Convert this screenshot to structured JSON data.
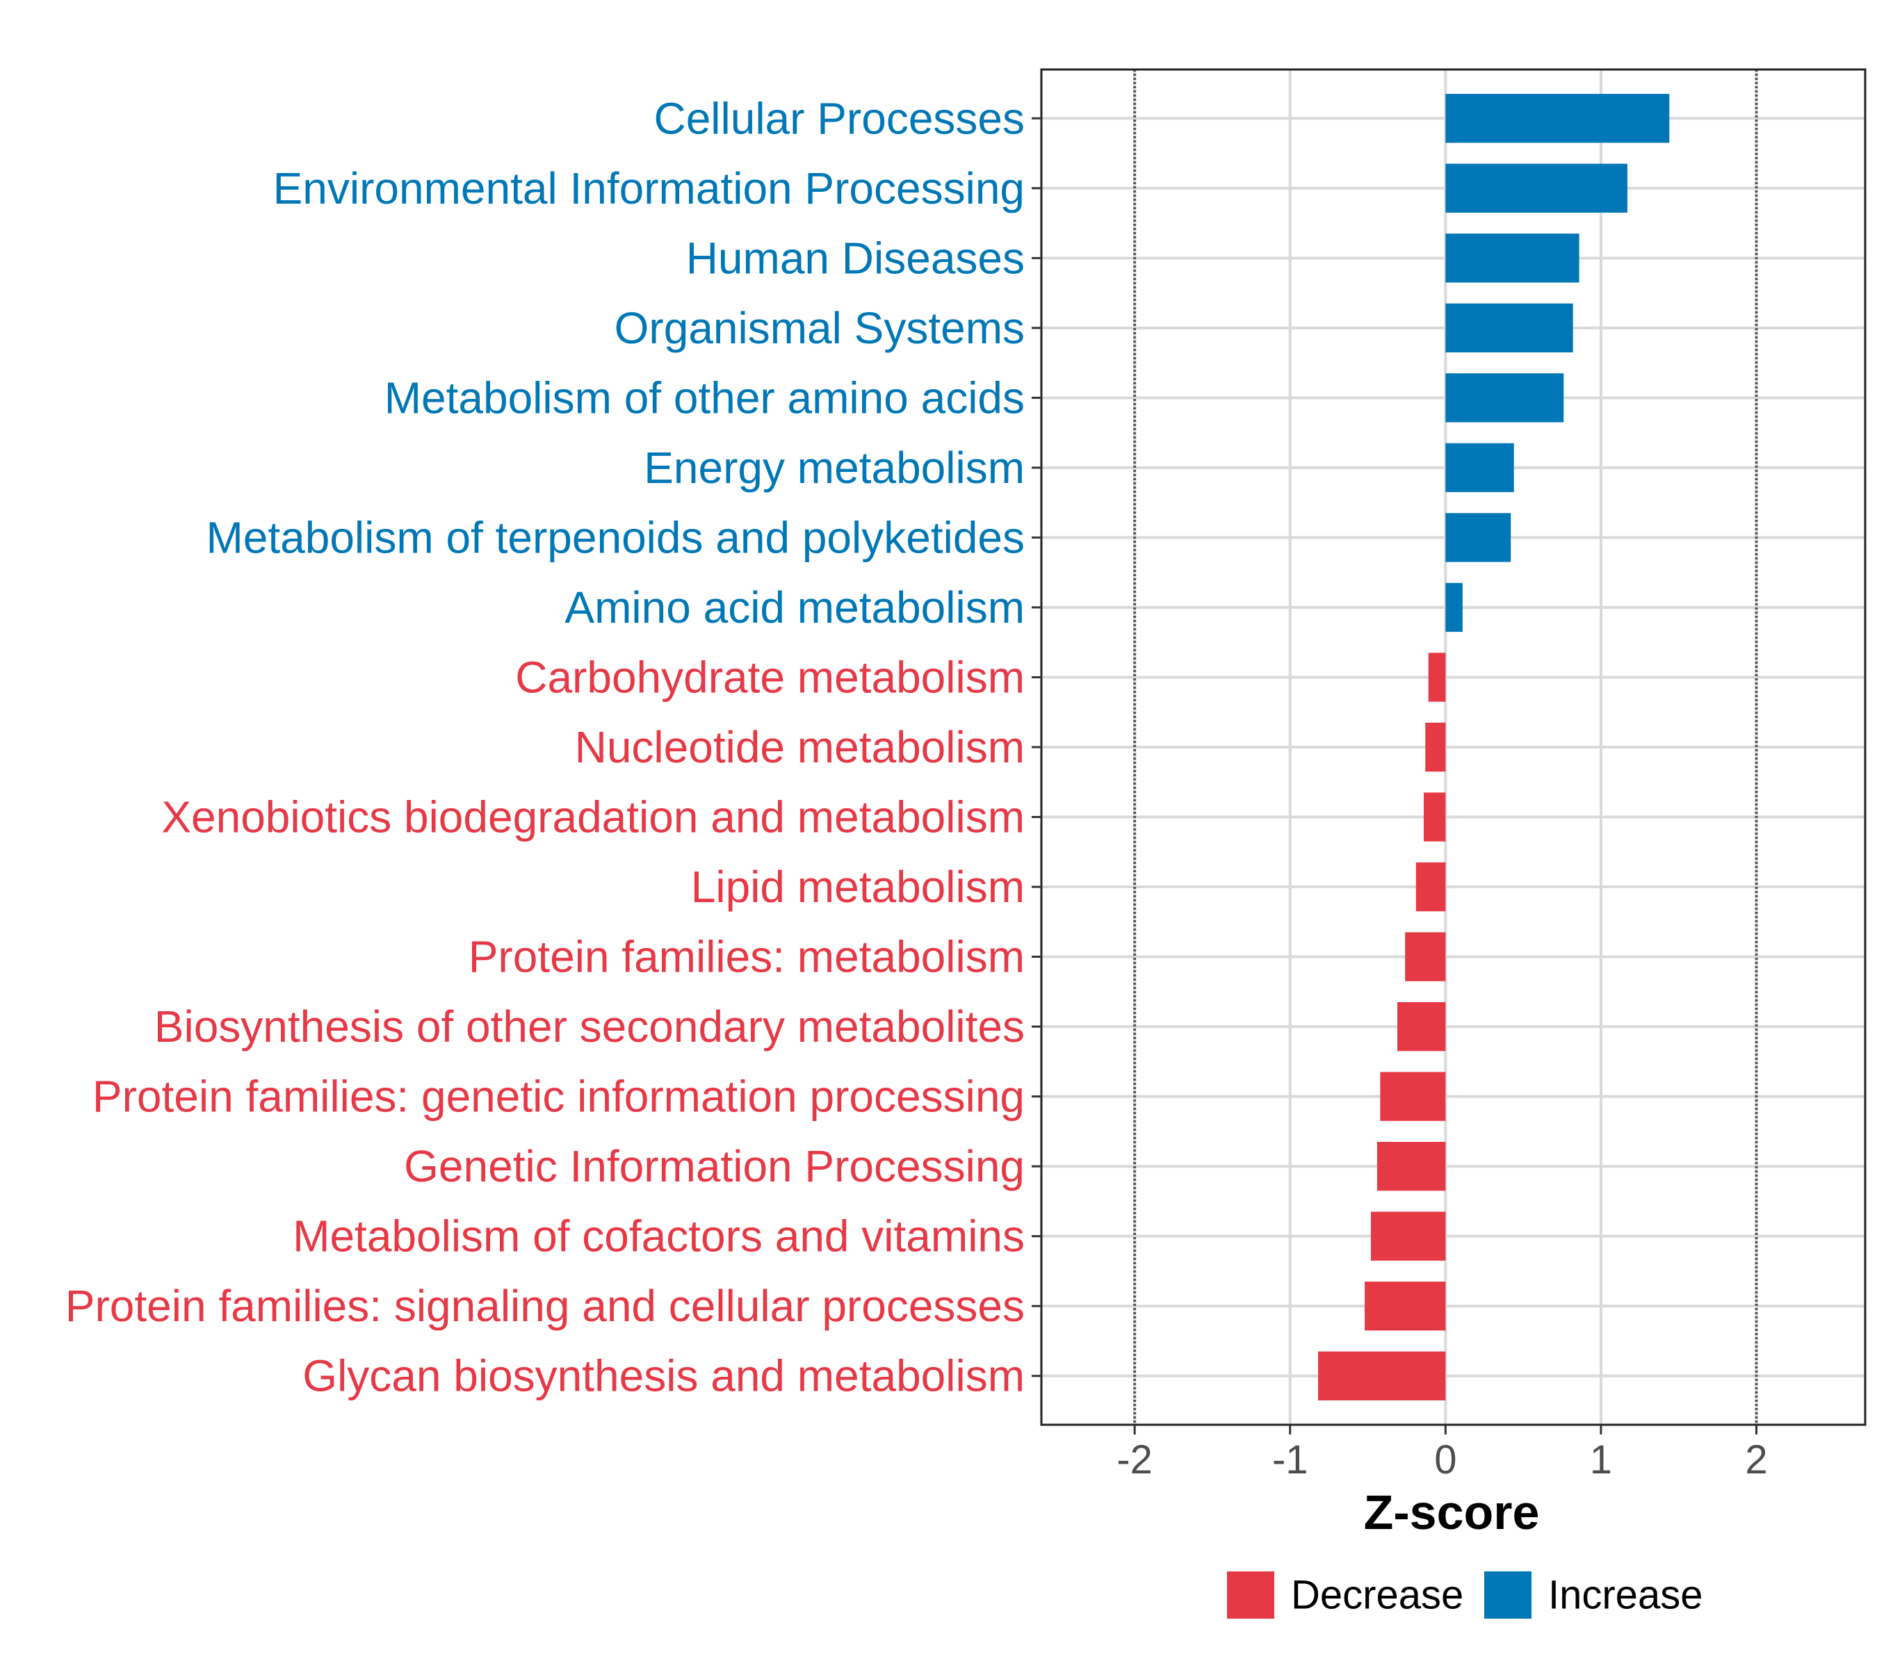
{
  "chart_data": {
    "type": "bar",
    "orientation": "horizontal",
    "title": "",
    "xlabel": "Z-score",
    "ylabel": "",
    "xlim": [
      -2.6,
      2.7
    ],
    "xticks": [
      -2,
      -1,
      0,
      1,
      2
    ],
    "xtick_labels": [
      "-2",
      "-1",
      "0",
      "1",
      "2"
    ],
    "reference_lines": [
      -2,
      2
    ],
    "grid": true,
    "colors": {
      "Increase": "#0077b6",
      "Decrease": "#e63946"
    },
    "categories": [
      "Cellular Processes",
      "Environmental Information Processing",
      "Human Diseases",
      "Organismal Systems",
      "Metabolism of other amino acids",
      "Energy metabolism",
      "Metabolism of terpenoids and polyketides",
      "Amino acid metabolism",
      "Carbohydrate metabolism",
      "Nucleotide metabolism",
      "Xenobiotics biodegradation and metabolism",
      "Lipid metabolism",
      "Protein families: metabolism",
      "Biosynthesis of other secondary metabolites",
      "Protein families: genetic information processing",
      "Genetic Information Processing",
      "Metabolism of cofactors and vitamins",
      "Protein families: signaling and cellular processes",
      "Glycan biosynthesis and metabolism"
    ],
    "values": [
      1.44,
      1.17,
      0.86,
      0.82,
      0.76,
      0.44,
      0.42,
      0.11,
      -0.11,
      -0.13,
      -0.14,
      -0.19,
      -0.26,
      -0.31,
      -0.42,
      -0.44,
      -0.48,
      -0.52,
      -0.82
    ],
    "groups": [
      "Increase",
      "Increase",
      "Increase",
      "Increase",
      "Increase",
      "Increase",
      "Increase",
      "Increase",
      "Decrease",
      "Decrease",
      "Decrease",
      "Decrease",
      "Decrease",
      "Decrease",
      "Decrease",
      "Decrease",
      "Decrease",
      "Decrease",
      "Decrease"
    ],
    "legend": {
      "position": "bottom",
      "entries": [
        {
          "label": "Decrease",
          "color": "#e63946"
        },
        {
          "label": "Increase",
          "color": "#0077b6"
        }
      ]
    }
  }
}
